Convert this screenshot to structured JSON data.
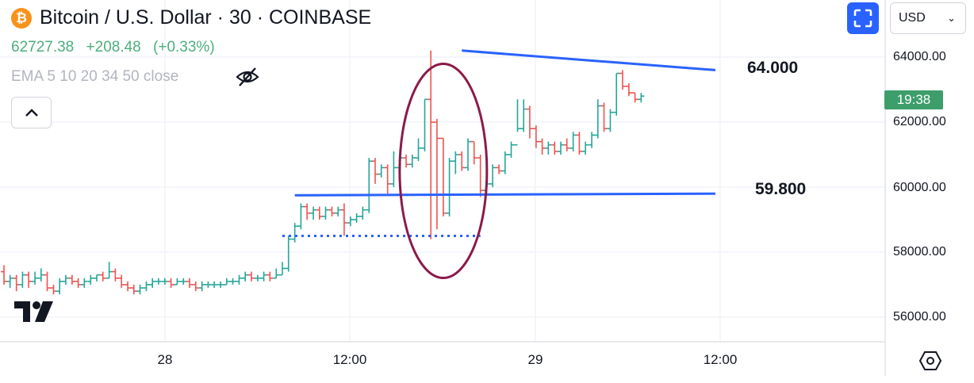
{
  "header": {
    "coin_symbol": "₿",
    "title": "Bitcoin / U.S. Dollar · 30 · COINBASE",
    "price": "62727.38",
    "change": "+208.48",
    "change_pct": "(+0.33%)",
    "indicator": "EMA 5 10 20 34 50 close"
  },
  "controls": {
    "currency": "USD",
    "time_badge": "19:38"
  },
  "colors": {
    "up": "#26a69a",
    "down": "#ef5350",
    "trendline": "#2962ff",
    "ellipse": "#8b1a4a",
    "badge": "#3d9e6b",
    "accent": "#2962ff"
  },
  "icons": [
    "bitcoin-icon",
    "eye-off-icon",
    "chevron-up-icon",
    "fullscreen-icon",
    "chevron-down-icon",
    "tradingview-logo",
    "settings-hexagon-icon"
  ],
  "chart_data": {
    "type": "ohlc",
    "y_ticks": [
      "64000.00",
      "62000.00",
      "60000.00",
      "58000.00",
      "56000.00"
    ],
    "y_tick_values": [
      64000,
      62000,
      60000,
      58000,
      56000
    ],
    "x_ticks": [
      "28",
      "12:00",
      "29",
      "12:00"
    ],
    "grid": true,
    "annotations": {
      "resistance_label": "64.000",
      "support_label": "59.800",
      "resistance": {
        "from": [
          24.67,
          64200
        ],
        "to": [
          38.33,
          63600
        ]
      },
      "support": {
        "from": [
          15.67,
          59750
        ],
        "to": [
          38.33,
          59800
        ]
      },
      "dotted_low": {
        "from": [
          15.0,
          58500
        ],
        "to": [
          25.67,
          58500
        ]
      },
      "ellipse_center": [
        23.67,
        60500
      ]
    },
    "series_ohlc": [
      [
        0,
        57400,
        57100,
        57600,
        57000
      ],
      [
        0.33,
        57100,
        57200,
        57300,
        56900
      ],
      [
        0.67,
        57200,
        57000,
        57300,
        56800
      ],
      [
        1,
        57000,
        57300,
        57400,
        56900
      ],
      [
        1.33,
        57300,
        57100,
        57400,
        56900
      ],
      [
        1.67,
        57100,
        57200,
        57400,
        57000
      ],
      [
        2,
        57200,
        57300,
        57500,
        57100
      ],
      [
        2.33,
        57300,
        56900,
        57400,
        56800
      ],
      [
        2.67,
        56900,
        56800,
        57000,
        56700
      ],
      [
        3,
        56800,
        57100,
        57200,
        56700
      ],
      [
        3.33,
        57100,
        57200,
        57300,
        57000
      ],
      [
        3.67,
        57200,
        57100,
        57300,
        57000
      ],
      [
        4,
        57100,
        57000,
        57200,
        56900
      ],
      [
        4.33,
        57000,
        57100,
        57200,
        56900
      ],
      [
        4.67,
        57100,
        57200,
        57300,
        57000
      ],
      [
        5,
        57200,
        57300,
        57300,
        57100
      ],
      [
        5.33,
        57300,
        57200,
        57400,
        57100
      ],
      [
        5.67,
        57200,
        57400,
        57700,
        57200
      ],
      [
        6,
        57400,
        57200,
        57500,
        57100
      ],
      [
        6.33,
        57200,
        57000,
        57300,
        56900
      ],
      [
        6.67,
        57000,
        56900,
        57100,
        56800
      ],
      [
        7,
        56900,
        56800,
        57000,
        56700
      ],
      [
        7.33,
        56800,
        56900,
        57000,
        56700
      ],
      [
        7.67,
        56900,
        57000,
        57100,
        56800
      ],
      [
        8,
        57000,
        57100,
        57200,
        56900
      ],
      [
        8.33,
        57100,
        57100,
        57200,
        57000
      ],
      [
        8.67,
        57100,
        57100,
        57200,
        57000
      ],
      [
        9,
        57100,
        57000,
        57200,
        56900
      ],
      [
        9.33,
        57000,
        57100,
        57200,
        57000
      ],
      [
        9.67,
        57100,
        57100,
        57200,
        57000
      ],
      [
        10,
        57100,
        57000,
        57200,
        56900
      ],
      [
        10.33,
        57000,
        56900,
        57100,
        56800
      ],
      [
        10.67,
        56900,
        57000,
        57100,
        56800
      ],
      [
        11,
        57000,
        57000,
        57100,
        56900
      ],
      [
        11.33,
        57000,
        57000,
        57100,
        56900
      ],
      [
        11.67,
        57000,
        57000,
        57100,
        56900
      ],
      [
        12,
        57000,
        57100,
        57200,
        57000
      ],
      [
        12.33,
        57100,
        57100,
        57200,
        57000
      ],
      [
        12.67,
        57100,
        57200,
        57300,
        57000
      ],
      [
        13,
        57200,
        57300,
        57400,
        57100
      ],
      [
        13.33,
        57300,
        57200,
        57400,
        57100
      ],
      [
        13.67,
        57200,
        57200,
        57300,
        57100
      ],
      [
        14,
        57200,
        57300,
        57400,
        57100
      ],
      [
        14.33,
        57300,
        57200,
        57400,
        57100
      ],
      [
        14.67,
        57200,
        57300,
        57500,
        57200
      ],
      [
        15,
        57300,
        57500,
        57700,
        57300
      ],
      [
        15.33,
        57500,
        58400,
        58500,
        57400
      ],
      [
        15.67,
        58400,
        58800,
        58900,
        58300
      ],
      [
        16,
        58800,
        59400,
        59500,
        58700
      ],
      [
        16.33,
        59400,
        59200,
        59500,
        59000
      ],
      [
        16.67,
        59200,
        59300,
        59400,
        59000
      ],
      [
        17,
        59300,
        59100,
        59400,
        59000
      ],
      [
        17.33,
        59100,
        59300,
        59400,
        59000
      ],
      [
        17.67,
        59300,
        59200,
        59400,
        59100
      ],
      [
        18,
        59200,
        59300,
        59400,
        59100
      ],
      [
        18.33,
        59300,
        58900,
        59500,
        58500
      ],
      [
        18.67,
        58900,
        59000,
        59100,
        58800
      ],
      [
        19,
        59000,
        59100,
        59200,
        58900
      ],
      [
        19.33,
        59100,
        59300,
        59400,
        59000
      ],
      [
        19.67,
        59300,
        60800,
        60900,
        59200
      ],
      [
        20,
        60800,
        60400,
        60900,
        60100
      ],
      [
        20.33,
        60400,
        60600,
        60700,
        60300
      ],
      [
        20.67,
        60600,
        60100,
        60700,
        59800
      ],
      [
        21,
        60100,
        60600,
        61100,
        60000
      ],
      [
        21.33,
        60600,
        60900,
        61000,
        60500
      ],
      [
        21.67,
        60900,
        60700,
        61000,
        60600
      ],
      [
        22,
        60700,
        60900,
        61000,
        60600
      ],
      [
        22.33,
        60900,
        61200,
        61500,
        60800
      ],
      [
        22.67,
        61200,
        62700,
        62700,
        61100
      ],
      [
        23,
        62700,
        62000,
        64200,
        58400
      ],
      [
        23.33,
        62000,
        61500,
        62100,
        58700
      ],
      [
        23.67,
        61500,
        59200,
        61500,
        59100
      ],
      [
        24,
        59200,
        60800,
        60900,
        59100
      ],
      [
        24.33,
        60800,
        61000,
        61100,
        60400
      ],
      [
        24.67,
        61000,
        60600,
        61100,
        60500
      ],
      [
        25,
        60600,
        61400,
        61500,
        60500
      ],
      [
        25.33,
        61400,
        60900,
        61400,
        60700
      ],
      [
        25.67,
        60900,
        59900,
        61000,
        59700
      ],
      [
        26,
        59900,
        60100,
        60300,
        59800
      ],
      [
        26.33,
        60100,
        60600,
        60700,
        60000
      ],
      [
        26.67,
        60600,
        60500,
        60700,
        60400
      ],
      [
        27,
        60500,
        61000,
        61100,
        60400
      ],
      [
        27.33,
        61000,
        61300,
        61400,
        60900
      ],
      [
        27.67,
        61300,
        61800,
        62700,
        61700
      ],
      [
        28,
        61800,
        62400,
        62700,
        61700
      ],
      [
        28.33,
        62400,
        61800,
        62500,
        61500
      ],
      [
        28.67,
        61800,
        61400,
        61900,
        61200
      ],
      [
        29,
        61400,
        61200,
        61500,
        61000
      ],
      [
        29.33,
        61200,
        61300,
        61400,
        61000
      ],
      [
        29.67,
        61300,
        61100,
        61400,
        61000
      ],
      [
        30,
        61100,
        61300,
        61400,
        61000
      ],
      [
        30.33,
        61300,
        61200,
        61500,
        61100
      ],
      [
        30.67,
        61200,
        61600,
        61700,
        61100
      ],
      [
        31,
        61600,
        61100,
        61700,
        61000
      ],
      [
        31.33,
        61100,
        61300,
        61400,
        61000
      ],
      [
        31.67,
        61300,
        61600,
        61700,
        61200
      ],
      [
        32,
        61600,
        62500,
        62700,
        61500
      ],
      [
        32.33,
        62500,
        61800,
        62600,
        61700
      ],
      [
        32.67,
        61800,
        62300,
        62400,
        61700
      ],
      [
        33,
        62300,
        63500,
        63500,
        62200
      ],
      [
        33.33,
        63500,
        63100,
        63600,
        63000
      ],
      [
        33.67,
        63100,
        62900,
        63200,
        62800
      ],
      [
        34,
        62900,
        62700,
        62900,
        62600
      ],
      [
        34.33,
        62700,
        62800,
        62900,
        62600
      ]
    ]
  }
}
